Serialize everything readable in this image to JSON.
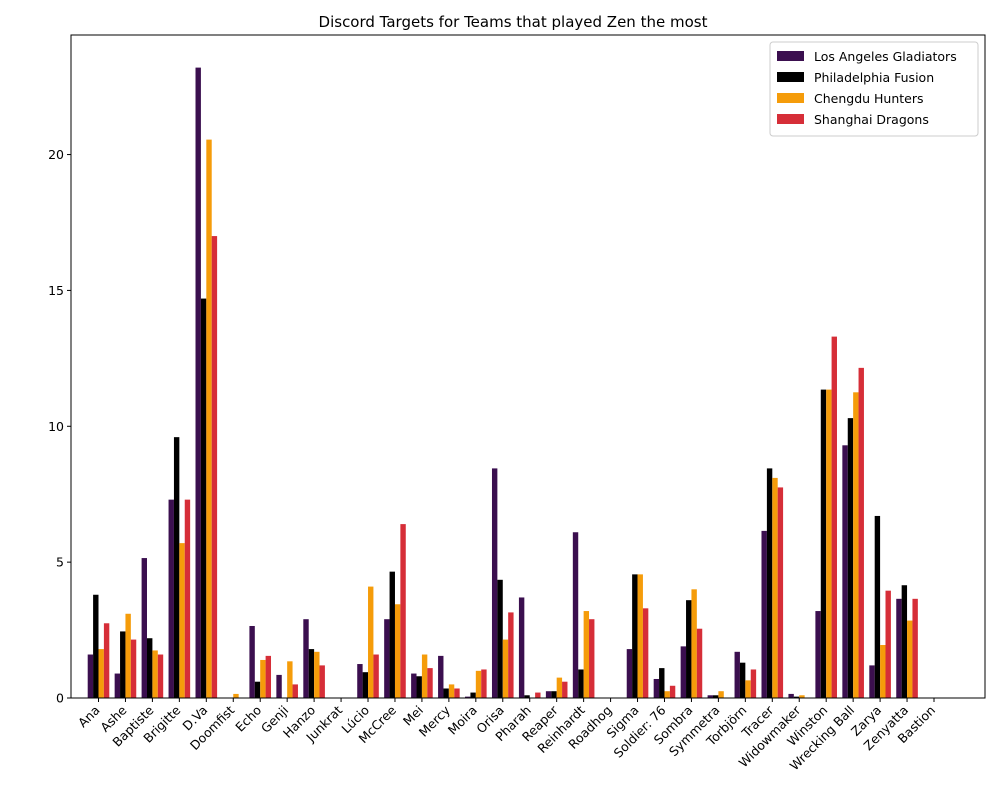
{
  "chart_data": {
    "type": "bar",
    "title": "Discord Targets for Teams that played Zen the most",
    "xlabel": "",
    "ylabel": "",
    "ylim": [
      0,
      24.4
    ],
    "yticks": [
      0,
      5,
      10,
      15,
      20
    ],
    "legend_position": "top-right",
    "grid": false,
    "categories": [
      "Ana",
      "Ashe",
      "Baptiste",
      "Brigitte",
      "D.Va",
      "Doomfist",
      "Echo",
      "Genji",
      "Hanzo",
      "Junkrat",
      "Lúcio",
      "McCree",
      "Mei",
      "Mercy",
      "Moira",
      "Orisa",
      "Pharah",
      "Reaper",
      "Reinhardt",
      "Roadhog",
      "Sigma",
      "Soldier: 76",
      "Sombra",
      "Symmetra",
      "Torbjörn",
      "Tracer",
      "Widowmaker",
      "Winston",
      "Wrecking Ball",
      "Zarya",
      "Zenyatta",
      "Bastion"
    ],
    "series": [
      {
        "name": "Los Angeles Gladiators",
        "color": "#3b0f4f",
        "values": [
          1.6,
          0.9,
          5.15,
          7.3,
          23.2,
          0.0,
          2.65,
          0.85,
          2.9,
          0.0,
          1.25,
          2.9,
          0.9,
          1.55,
          0.05,
          8.45,
          3.7,
          0.25,
          6.1,
          0.0,
          1.8,
          0.7,
          1.9,
          0.1,
          1.7,
          6.15,
          0.15,
          3.2,
          9.3,
          1.2,
          3.65,
          0.0
        ]
      },
      {
        "name": "Philadelphia Fusion",
        "color": "#000000",
        "values": [
          3.8,
          2.45,
          2.2,
          9.6,
          14.7,
          0.0,
          0.6,
          0.0,
          1.8,
          0.0,
          0.95,
          4.65,
          0.8,
          0.35,
          0.2,
          4.35,
          0.1,
          0.25,
          1.05,
          0.0,
          4.55,
          1.1,
          3.6,
          0.1,
          1.3,
          8.45,
          0.05,
          11.35,
          10.3,
          6.7,
          4.15,
          0.0
        ]
      },
      {
        "name": "Chengdu Hunters",
        "color": "#f59c0a",
        "values": [
          1.8,
          3.1,
          1.75,
          5.7,
          20.55,
          0.15,
          1.4,
          1.35,
          1.7,
          0.0,
          4.1,
          3.45,
          1.6,
          0.5,
          1.0,
          2.15,
          0.0,
          0.75,
          3.2,
          0.0,
          4.55,
          0.25,
          4.0,
          0.25,
          0.65,
          8.1,
          0.1,
          11.35,
          11.25,
          1.95,
          2.85,
          0.0
        ]
      },
      {
        "name": "Shanghai Dragons",
        "color": "#d62e38",
        "values": [
          2.75,
          2.15,
          1.6,
          7.3,
          17.0,
          0.0,
          1.55,
          0.5,
          1.2,
          0.0,
          1.6,
          6.4,
          1.1,
          0.35,
          1.05,
          3.15,
          0.2,
          0.6,
          2.9,
          0.0,
          3.3,
          0.45,
          2.55,
          0.0,
          1.05,
          7.75,
          0.0,
          13.3,
          12.15,
          3.95,
          3.65,
          0.0
        ]
      }
    ]
  }
}
